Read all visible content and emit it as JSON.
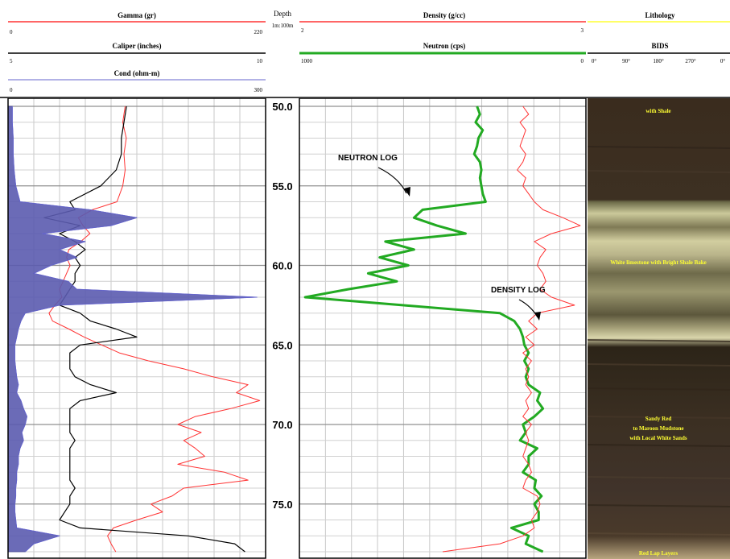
{
  "header": {
    "gamma": {
      "title": "Gamma (gr)",
      "min": "0",
      "max": "220",
      "color": "#ff3333"
    },
    "caliper": {
      "title": "Caliper (inches)",
      "min": "5",
      "max": "10",
      "color": "#000000"
    },
    "cond": {
      "title": "Cond (ohm-m)",
      "min": "0",
      "max": "300",
      "color": "#6666cc"
    },
    "depth": {
      "title": "Depth",
      "scale": "1m:100m"
    },
    "density": {
      "title": "Density (g/cc)",
      "min": "2",
      "max": "3",
      "color": "#ff3333"
    },
    "neutron": {
      "title": "Neutron (cps)",
      "min": "1000",
      "max": "0",
      "color": "#22aa22"
    },
    "lithology": {
      "title": "Lithology",
      "color": "#ffff33"
    },
    "bids": {
      "title": "BIDS",
      "ticks": [
        "0°",
        "90°",
        "180°",
        "270°",
        "0°"
      ]
    }
  },
  "annotations": {
    "neutron": "NEUTRON LOG",
    "density": "DENSITY LOG"
  },
  "core_labels": [
    "with Shale",
    "White limestone with Bright Shale Bake",
    "Sandy Red to Maroon Mudstone with Local White Sands",
    "Red Lap Layers"
  ],
  "chart_data": {
    "type": "line",
    "title": "",
    "ylabel": "Depth",
    "ylim": [
      50,
      78
    ],
    "depth_ticks": [
      "50.0",
      "55.0",
      "60.0",
      "65.0",
      "70.0",
      "75.0"
    ],
    "tracks": [
      {
        "name": "Gamma (gr)",
        "color": "#ff3333",
        "xlim": [
          0,
          220
        ],
        "depth": [
          50,
          51,
          52,
          53,
          54,
          55,
          56,
          56.5,
          57,
          57.5,
          58,
          58.5,
          59,
          59.5,
          60,
          60.5,
          61,
          61.5,
          62,
          62.5,
          63,
          63.5,
          64,
          64.5,
          65,
          65.5,
          66,
          66.5,
          67,
          67.5,
          68,
          68.5,
          69,
          69.5,
          70,
          70.5,
          71,
          71.5,
          72,
          72.5,
          73,
          73.5,
          74,
          74.5,
          75,
          75.5,
          76,
          76.5,
          77,
          77.5,
          78
        ],
        "values": [
          100,
          98,
          101,
          99,
          100,
          98,
          93,
          72,
          60,
          64,
          70,
          62,
          52,
          50,
          53,
          50,
          47,
          44,
          46,
          40,
          35,
          38,
          52,
          65,
          80,
          95,
          120,
          150,
          175,
          205,
          195,
          215,
          190,
          160,
          145,
          165,
          150,
          160,
          168,
          145,
          185,
          205,
          150,
          140,
          122,
          132,
          110,
          90,
          85,
          88,
          92
        ]
      },
      {
        "name": "Caliper (inches)",
        "color": "#000000",
        "xlim": [
          5,
          10
        ],
        "depth": [
          50,
          51,
          52,
          53,
          54,
          55,
          56,
          56.5,
          57,
          57.5,
          58,
          58.5,
          59,
          59.5,
          60,
          60.5,
          61,
          61.5,
          62,
          62.5,
          63,
          63.5,
          64,
          64.5,
          65,
          65.5,
          66,
          66.5,
          67,
          67.5,
          68,
          68.5,
          69,
          69.5,
          70,
          70.5,
          71,
          71.5,
          72,
          72.5,
          73,
          73.5,
          74,
          74.5,
          75,
          75.5,
          76,
          76.5,
          77,
          77.5,
          78
        ],
        "values": [
          7.3,
          7.25,
          7.2,
          7.2,
          7.1,
          6.8,
          6.2,
          6.3,
          5.7,
          6.4,
          6.0,
          6.3,
          6.5,
          6.3,
          6.4,
          6.3,
          6.3,
          6.2,
          6.1,
          6.0,
          6.4,
          6.6,
          7.1,
          7.5,
          6.4,
          6.2,
          6.2,
          6.2,
          6.3,
          6.6,
          7.1,
          6.4,
          6.2,
          6.2,
          6.2,
          6.2,
          6.3,
          6.2,
          6.2,
          6.2,
          6.2,
          6.2,
          6.3,
          6.2,
          6.2,
          6.1,
          6.0,
          6.4,
          8.5,
          9.4,
          9.6
        ]
      },
      {
        "name": "Cond (ohm-m)",
        "color": "#6666cc",
        "xlim": [
          0,
          300
        ],
        "depth": [
          50,
          51,
          52,
          53,
          54,
          55,
          56,
          56.5,
          57,
          57.5,
          58,
          58.5,
          59,
          59.5,
          60,
          60.5,
          61,
          61.5,
          62,
          62.5,
          63,
          63.5,
          64,
          64.5,
          65,
          65.5,
          66,
          66.5,
          67,
          67.5,
          68,
          68.5,
          69,
          69.5,
          70,
          70.5,
          71,
          71.5,
          72,
          72.5,
          73,
          73.5,
          74,
          74.5,
          75,
          75.5,
          76,
          76.5,
          77,
          77.5,
          78
        ],
        "values": [
          5,
          5,
          6,
          6,
          7,
          9,
          14,
          95,
          150,
          120,
          40,
          90,
          60,
          80,
          50,
          30,
          70,
          80,
          290,
          60,
          20,
          15,
          12,
          10,
          8,
          8,
          8,
          9,
          10,
          12,
          10,
          15,
          18,
          22,
          20,
          16,
          18,
          14,
          12,
          12,
          10,
          10,
          9,
          9,
          8,
          8,
          9,
          10,
          60,
          30,
          20
        ]
      },
      {
        "name": "Neutron (cps)",
        "color": "#22aa22",
        "xlim": [
          1000,
          0
        ],
        "depth": [
          50,
          50.5,
          51,
          51.5,
          52,
          52.5,
          53,
          53.5,
          54,
          54.5,
          55,
          55.5,
          56,
          56.5,
          57,
          57.5,
          58,
          58.5,
          59,
          59.5,
          60,
          60.5,
          61,
          61.5,
          62,
          62.5,
          63,
          63.5,
          64,
          64.5,
          65,
          65.5,
          66,
          66.5,
          67,
          67.5,
          68,
          68.5,
          69,
          69.5,
          70,
          70.5,
          71,
          71.5,
          72,
          72.5,
          73,
          73.5,
          74,
          74.5,
          75,
          75.5,
          76,
          76.5,
          77,
          77.5,
          78
        ],
        "values": [
          380,
          370,
          385,
          360,
          375,
          380,
          390,
          370,
          365,
          370,
          365,
          360,
          350,
          570,
          600,
          520,
          420,
          700,
          600,
          720,
          620,
          760,
          660,
          830,
          980,
          640,
          300,
          250,
          230,
          220,
          215,
          200,
          215,
          200,
          210,
          200,
          160,
          170,
          150,
          180,
          220,
          210,
          230,
          170,
          200,
          200,
          220,
          175,
          180,
          155,
          180,
          165,
          165,
          260,
          200,
          210,
          150
        ]
      },
      {
        "name": "Density (g/cc)",
        "color": "#ff3333",
        "xlim": [
          2,
          3
        ],
        "depth": [
          50,
          50.5,
          51,
          51.5,
          52,
          52.5,
          53,
          53.5,
          54,
          54.5,
          55,
          55.5,
          56,
          56.5,
          57,
          57.5,
          58,
          58.5,
          59,
          59.5,
          60,
          60.5,
          61,
          61.5,
          62,
          62.5,
          63,
          63.5,
          64,
          64.5,
          65,
          65.5,
          66,
          66.5,
          67,
          67.5,
          68,
          68.5,
          69,
          69.5,
          70,
          70.5,
          71,
          71.5,
          72,
          72.5,
          73,
          73.5,
          74,
          74.5,
          75,
          75.5,
          76,
          76.5,
          77,
          77.5,
          78
        ],
        "values": [
          2.78,
          2.8,
          2.77,
          2.79,
          2.78,
          2.77,
          2.79,
          2.78,
          2.76,
          2.79,
          2.78,
          2.8,
          2.82,
          2.85,
          2.92,
          2.98,
          2.88,
          2.82,
          2.86,
          2.84,
          2.83,
          2.85,
          2.86,
          2.84,
          2.88,
          2.96,
          2.83,
          2.8,
          2.83,
          2.79,
          2.82,
          2.78,
          2.81,
          2.79,
          2.8,
          2.79,
          2.81,
          2.79,
          2.8,
          2.78,
          2.81,
          2.79,
          2.8,
          2.79,
          2.78,
          2.8,
          2.81,
          2.79,
          2.78,
          2.83,
          2.84,
          2.83,
          2.81,
          2.82,
          2.78,
          2.7,
          2.5
        ]
      }
    ]
  }
}
